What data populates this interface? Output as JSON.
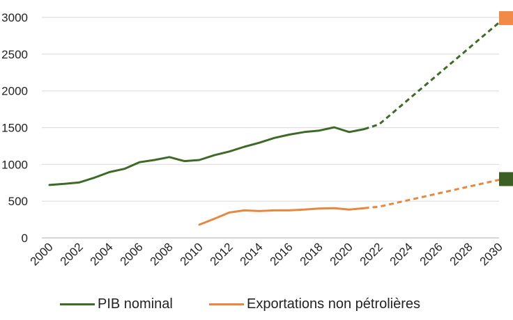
{
  "chart_data": {
    "type": "line",
    "title": "",
    "xlabel": "",
    "ylabel": "",
    "xlim": [
      2000,
      2030
    ],
    "ylim": [
      0,
      3000
    ],
    "x_ticks": [
      "2000",
      "2002",
      "2004",
      "2006",
      "2008",
      "2010",
      "2012",
      "2014",
      "2016",
      "2018",
      "2020",
      "2022",
      "2024",
      "2026",
      "2028",
      "2030"
    ],
    "y_ticks": [
      "0",
      "500",
      "1000",
      "1500",
      "2000",
      "2500",
      "3000"
    ],
    "y_tick_values": [
      0,
      500,
      1000,
      1500,
      2000,
      2500,
      3000
    ],
    "grid": "horizontal",
    "legend_position": "bottom",
    "series": [
      {
        "name": "PIB nominal",
        "color": "#3d6a27",
        "marker_color": "#3d5f23",
        "values": [
          [
            2000,
            720
          ],
          [
            2001,
            735
          ],
          [
            2002,
            755
          ],
          [
            2003,
            820
          ],
          [
            2004,
            895
          ],
          [
            2005,
            940
          ],
          [
            2006,
            1030
          ],
          [
            2007,
            1060
          ],
          [
            2008,
            1100
          ],
          [
            2009,
            1045
          ],
          [
            2010,
            1060
          ],
          [
            2011,
            1125
          ],
          [
            2012,
            1175
          ],
          [
            2013,
            1240
          ],
          [
            2014,
            1295
          ],
          [
            2015,
            1360
          ],
          [
            2016,
            1405
          ],
          [
            2017,
            1440
          ],
          [
            2018,
            1460
          ],
          [
            2019,
            1505
          ],
          [
            2020,
            1440
          ],
          [
            2021,
            1480
          ]
        ],
        "projection": [
          [
            2021,
            1480
          ],
          [
            2022,
            1545
          ],
          [
            2030,
            2930
          ]
        ],
        "target_marker": [
          2030,
          800
        ]
      },
      {
        "name": "Exportations non pétrolières",
        "color": "#e8873e",
        "marker_color": "#f08a46",
        "values": [
          [
            2010,
            180
          ],
          [
            2011,
            260
          ],
          [
            2012,
            345
          ],
          [
            2013,
            375
          ],
          [
            2014,
            365
          ],
          [
            2015,
            375
          ],
          [
            2016,
            375
          ],
          [
            2017,
            385
          ],
          [
            2018,
            400
          ],
          [
            2019,
            405
          ],
          [
            2020,
            385
          ],
          [
            2021,
            405
          ]
        ],
        "projection": [
          [
            2021,
            405
          ],
          [
            2022,
            425
          ],
          [
            2030,
            790
          ]
        ],
        "target_marker": [
          2030,
          2990
        ]
      }
    ]
  }
}
